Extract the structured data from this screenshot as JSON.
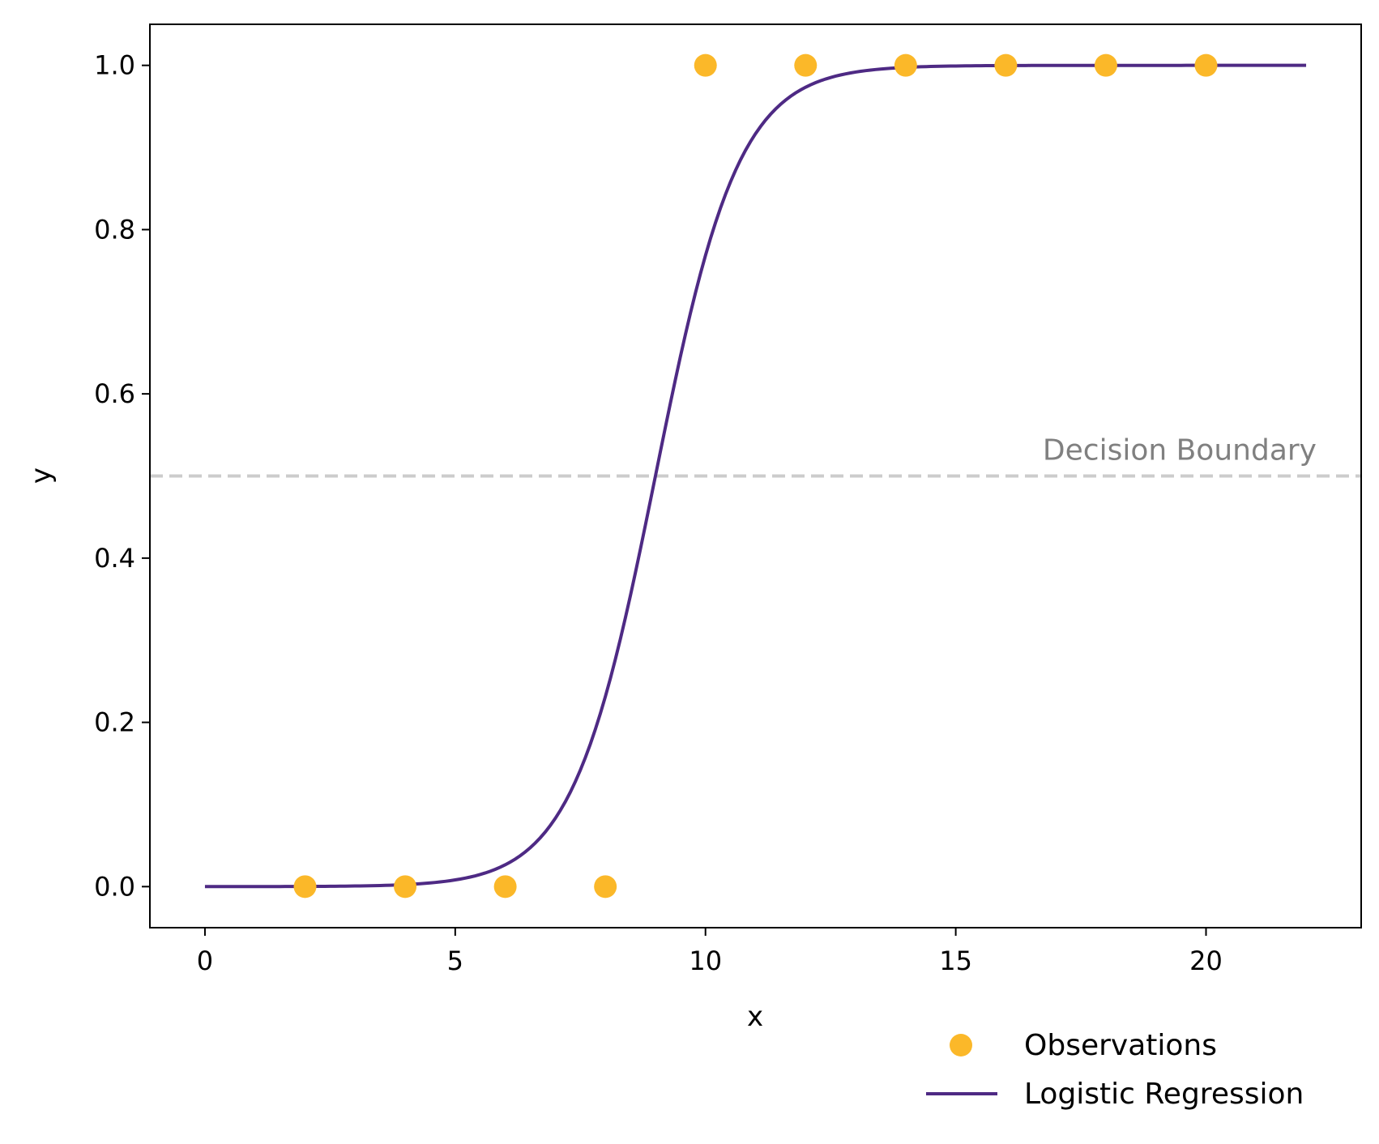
{
  "chart_data": {
    "type": "scatter",
    "xlabel": "x",
    "ylabel": "y",
    "xlim": [
      -1.1,
      23.1
    ],
    "ylim": [
      -0.05,
      1.05
    ],
    "xticks": [
      0,
      5,
      10,
      15,
      20
    ],
    "xtick_labels": [
      "0",
      "5",
      "10",
      "15",
      "20"
    ],
    "yticks": [
      0.0,
      0.2,
      0.4,
      0.6,
      0.8,
      1.0
    ],
    "ytick_labels": [
      "0.0",
      "0.2",
      "0.4",
      "0.6",
      "0.8",
      "1.0"
    ],
    "grid": false,
    "legend_position": "below-right",
    "series": [
      {
        "name": "Observations",
        "kind": "scatter",
        "color": "#FBB829",
        "x": [
          2,
          4,
          6,
          8,
          10,
          12,
          14,
          16,
          18,
          20
        ],
        "y": [
          0,
          0,
          0,
          0,
          1,
          1,
          1,
          1,
          1,
          1
        ]
      },
      {
        "name": "Logistic Regression",
        "kind": "line",
        "color": "#4E2A84",
        "x_range": [
          0,
          22
        ],
        "model": "logistic",
        "slope": 1.2,
        "midpoint": 9
      }
    ],
    "annotations": [
      {
        "text": "Decision Boundary",
        "y": 0.5,
        "line_style": "dashed",
        "line_color": "#CCCCCC",
        "text_color": "#808080"
      }
    ]
  }
}
